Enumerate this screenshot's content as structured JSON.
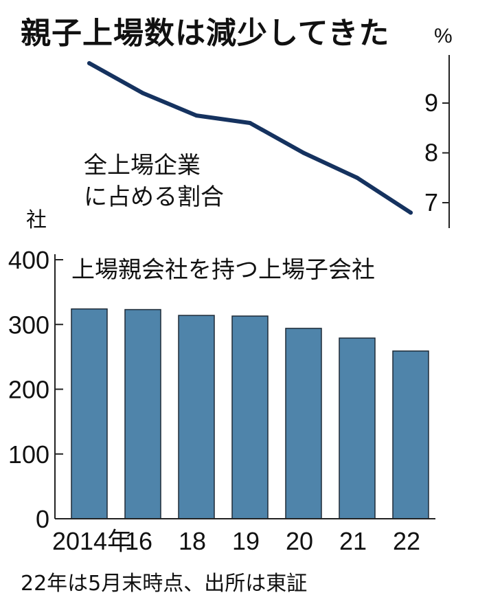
{
  "title": "親子上場数は減少してきた",
  "note": "22年は5月末時点、出所は東証",
  "chart_data": [
    {
      "type": "line",
      "title": "全上場企業に占める割合",
      "label_lines": [
        "全上場企業",
        "に占める割合"
      ],
      "unit": "%",
      "x": [
        "2014",
        "16",
        "18",
        "19",
        "20",
        "21",
        "22"
      ],
      "values": [
        9.8,
        9.2,
        8.75,
        8.6,
        8.0,
        7.5,
        6.8
      ],
      "ylim": [
        6.5,
        10.0
      ],
      "yticks": [
        7,
        8,
        9
      ],
      "axis_side": "right",
      "color": "#15325f"
    },
    {
      "type": "bar",
      "title": "上場親会社を持つ上場子会社",
      "unit": "社",
      "categories": [
        "2014年",
        "16",
        "18",
        "19",
        "20",
        "21",
        "22"
      ],
      "values": [
        324,
        323,
        314,
        313,
        294,
        279,
        259
      ],
      "ylim": [
        0,
        400
      ],
      "yticks": [
        0,
        100,
        200,
        300,
        400
      ],
      "axis_side": "left",
      "color": "#4f84aa"
    }
  ]
}
